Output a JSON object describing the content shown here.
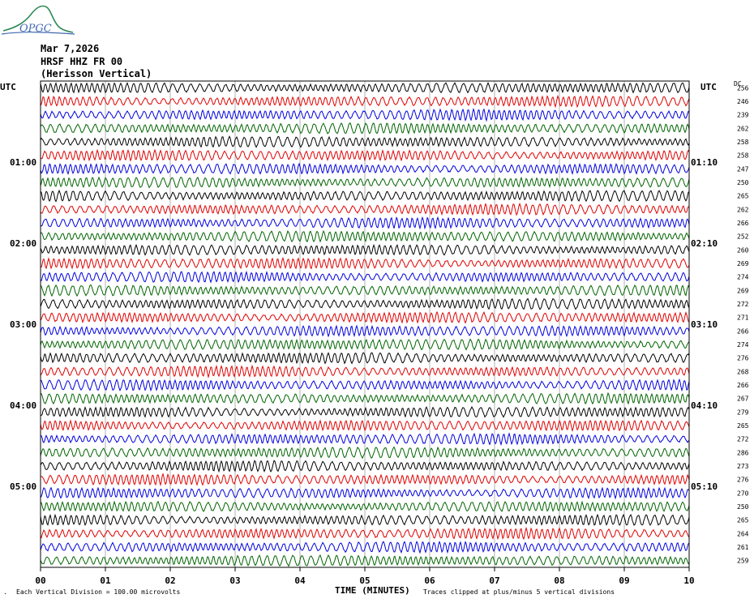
{
  "logo": {
    "text": "OPGC",
    "color": "#2e8b57"
  },
  "header": {
    "date": "Mar 7,2026",
    "station": "HRSF HHZ FR 00",
    "site": "(Herisson Vertical)"
  },
  "left_axis_title": "UTC",
  "right_axis_title": "UTC",
  "dc_title": "DC",
  "left_time_labels": [
    "01:00",
    "02:00",
    "03:00",
    "04:00",
    "05:00"
  ],
  "right_time_labels": [
    "01:10",
    "02:10",
    "03:10",
    "04:10",
    "05:10"
  ],
  "footer": {
    "scale_note": "Each Vertical Division =  100.00 microvolts",
    "xaxis_title": "TIME (MINUTES)",
    "clip_note": "Traces clipped at plus/minus 5 vertical divisions",
    "corner_mark": "."
  },
  "colors": {
    "trace_cycle": [
      "#000000",
      "#e00000",
      "#0000e0",
      "#006400"
    ],
    "grid": "#808080"
  },
  "chart_data": {
    "type": "line",
    "title": "HRSF HHZ FR 00 (Herisson Vertical)",
    "xlabel": "TIME (MINUTES)",
    "xlim": [
      0,
      10
    ],
    "x_ticks": [
      "00",
      "01",
      "02",
      "03",
      "04",
      "05",
      "06",
      "07",
      "08",
      "09",
      "10"
    ],
    "trace_count": 36,
    "dc_offsets": [
      256,
      246,
      239,
      262,
      258,
      258,
      247,
      250,
      265,
      262,
      266,
      252,
      260,
      269,
      274,
      269,
      272,
      271,
      266,
      274,
      276,
      268,
      266,
      267,
      279,
      265,
      272,
      286,
      273,
      276,
      270,
      250,
      265,
      264,
      261,
      259
    ]
  }
}
